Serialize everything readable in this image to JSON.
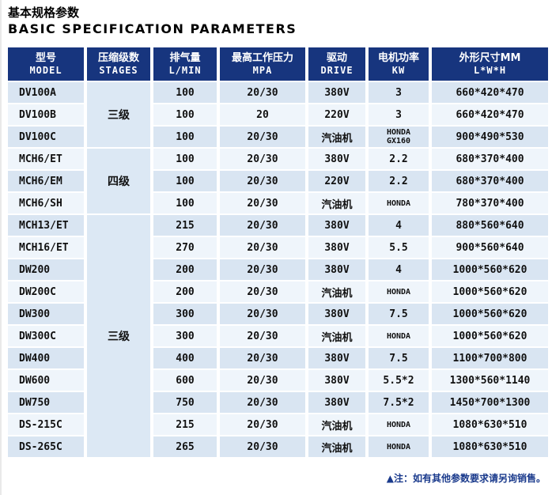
{
  "page": {
    "title_zh": "基本规格参数",
    "title_en": "BASIC SPECIFICATION PARAMETERS",
    "note": "▲注：如有其他参数要求请另询销售。"
  },
  "colors": {
    "header_bg": "#17357e",
    "row_odd": "#d9e5f2",
    "row_even": "#eff5fb",
    "stage_cell": "#dce8f4",
    "note_text": "#1a3a8c"
  },
  "table": {
    "headers": [
      {
        "zh": "型号",
        "en": "MODEL"
      },
      {
        "zh": "压缩级数",
        "en": "STAGES"
      },
      {
        "zh": "排气量",
        "en": "L/MIN"
      },
      {
        "zh": "最高工作压力",
        "en": "MPA"
      },
      {
        "zh": "驱动",
        "en": "DRIVE"
      },
      {
        "zh": "电机功率",
        "en": "KW"
      },
      {
        "zh": "外形尺寸MM",
        "en": "L*W*H"
      }
    ],
    "stage_groups": [
      {
        "label": "三级",
        "rows": 3
      },
      {
        "label": "四级",
        "rows": 3
      },
      {
        "label": "三级",
        "rows": 11
      }
    ],
    "rows": [
      {
        "model": "DV100A",
        "flow": "100",
        "pressure": "20/30",
        "drive": "380V",
        "power_lines": [
          "3"
        ],
        "dims": "660*420*470"
      },
      {
        "model": "DV100B",
        "flow": "100",
        "pressure": "20",
        "drive": "220V",
        "power_lines": [
          "3"
        ],
        "dims": "660*420*470"
      },
      {
        "model": "DV100C",
        "flow": "100",
        "pressure": "20/30",
        "drive": "汽油机",
        "power_lines": [
          "HONDA",
          "GX160"
        ],
        "dims": "900*490*530"
      },
      {
        "model": "MCH6/ET",
        "flow": "100",
        "pressure": "20/30",
        "drive": "380V",
        "power_lines": [
          "2.2"
        ],
        "dims": "680*370*400"
      },
      {
        "model": "MCH6/EM",
        "flow": "100",
        "pressure": "20/30",
        "drive": "220V",
        "power_lines": [
          "2.2"
        ],
        "dims": "680*370*400"
      },
      {
        "model": "MCH6/SH",
        "flow": "100",
        "pressure": "20/30",
        "drive": "汽油机",
        "power_lines": [
          "HONDA"
        ],
        "dims": "780*370*400"
      },
      {
        "model": "MCH13/ET",
        "flow": "215",
        "pressure": "20/30",
        "drive": "380V",
        "power_lines": [
          "4"
        ],
        "dims": "880*560*640"
      },
      {
        "model": "MCH16/ET",
        "flow": "270",
        "pressure": "20/30",
        "drive": "380V",
        "power_lines": [
          "5.5"
        ],
        "dims": "900*560*640"
      },
      {
        "model": "DW200",
        "flow": "200",
        "pressure": "20/30",
        "drive": "380V",
        "power_lines": [
          "4"
        ],
        "dims": "1000*560*620"
      },
      {
        "model": "DW200C",
        "flow": "200",
        "pressure": "20/30",
        "drive": "汽油机",
        "power_lines": [
          "HONDA"
        ],
        "dims": "1000*560*620"
      },
      {
        "model": "DW300",
        "flow": "300",
        "pressure": "20/30",
        "drive": "380V",
        "power_lines": [
          "7.5"
        ],
        "dims": "1000*560*620"
      },
      {
        "model": "DW300C",
        "flow": "300",
        "pressure": "20/30",
        "drive": "汽油机",
        "power_lines": [
          "HONDA"
        ],
        "dims": "1000*560*620"
      },
      {
        "model": "DW400",
        "flow": "400",
        "pressure": "20/30",
        "drive": "380V",
        "power_lines": [
          "7.5"
        ],
        "dims": "1100*700*800"
      },
      {
        "model": "DW600",
        "flow": "600",
        "pressure": "20/30",
        "drive": "380V",
        "power_lines": [
          "5.5*2"
        ],
        "dims": "1300*560*1140"
      },
      {
        "model": "DW750",
        "flow": "750",
        "pressure": "20/30",
        "drive": "380V",
        "power_lines": [
          "7.5*2"
        ],
        "dims": "1450*700*1300"
      },
      {
        "model": "DS-215C",
        "flow": "215",
        "pressure": "20/30",
        "drive": "汽油机",
        "power_lines": [
          "HONDA"
        ],
        "dims": "1080*630*510"
      },
      {
        "model": "DS-265C",
        "flow": "265",
        "pressure": "20/30",
        "drive": "汽油机",
        "power_lines": [
          "HONDA"
        ],
        "dims": "1080*630*510"
      }
    ]
  }
}
